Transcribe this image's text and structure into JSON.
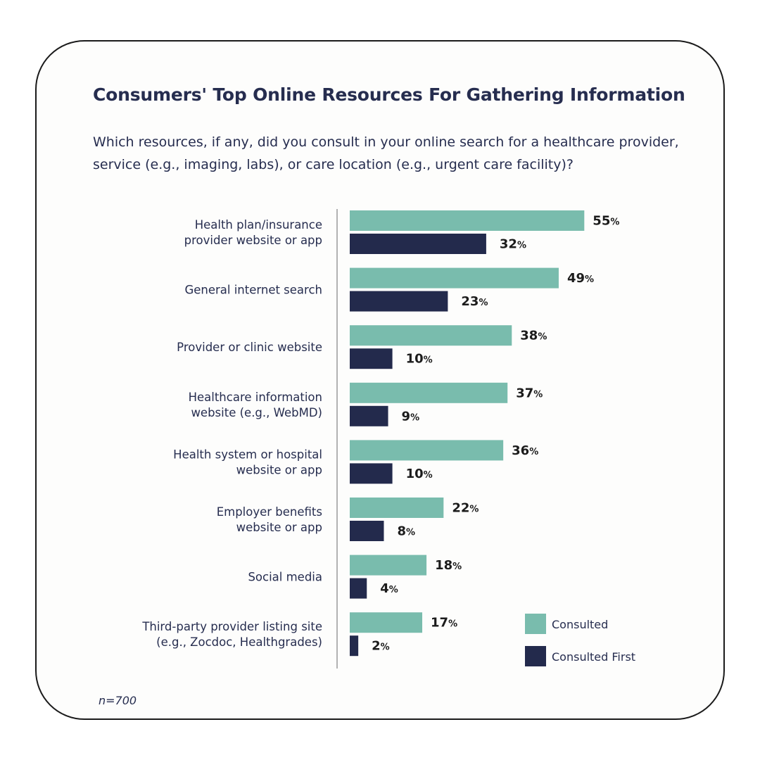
{
  "footnote": "n=700",
  "colors": {
    "consulted": "#79bcad",
    "consulted_first": "#232a4c",
    "axis": "#9a9a9a"
  },
  "chart_data": {
    "type": "bar",
    "orientation": "horizontal",
    "title": "Consumers' Top Online Resources For Gathering Information",
    "subtitle": "Which resources, if any, did you consult in your online search for a healthcare provider, service (e.g., imaging, labs), or care location (e.g., urgent care facility)?",
    "categories": [
      [
        "Health plan/insurance",
        "provider website or app"
      ],
      [
        "General internet search"
      ],
      [
        "Provider or clinic website"
      ],
      [
        "Healthcare information",
        "website (e.g., WebMD)"
      ],
      [
        "Health system or hospital",
        "website or app"
      ],
      [
        "Employer benefits",
        "website or app"
      ],
      [
        "Social media"
      ],
      [
        "Third-party provider listing site",
        "(e.g., Zocdoc, Healthgrades)"
      ]
    ],
    "series": [
      {
        "name": "Consulted",
        "values": [
          55,
          49,
          38,
          37,
          36,
          22,
          18,
          17
        ]
      },
      {
        "name": "Consulted First",
        "values": [
          32,
          23,
          10,
          9,
          10,
          8,
          4,
          2
        ]
      }
    ],
    "value_suffix": "%",
    "legend_position": "bottom-right",
    "grid": false
  }
}
